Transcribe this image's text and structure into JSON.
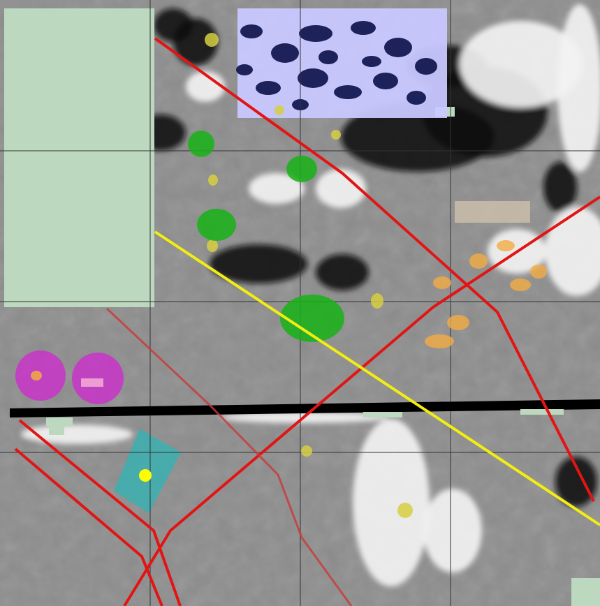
{
  "map": {
    "kind": "geophysical-survey-interpretation",
    "grid_columns": 4,
    "grid_rows": 4,
    "colors": {
      "grid_line": "#333333",
      "unsurveyed_fill": "#bcd9c0",
      "survey_dark": "#0b0b0b",
      "survey_light": "#f2f2f2",
      "linear_feature": "#e21414",
      "faint_linear_feature": "#c83a3a",
      "trackway": "#f2ee12",
      "pit_small": "#d6cf42",
      "pit_large": "#18b318",
      "pit_cluster": "#f2ab44",
      "ring_feature": "#cc2ecc",
      "disturbance_area": "#2fb4b4",
      "magnetic_area": "#c8c8ff",
      "boundary_strip": "#000000",
      "structure_block": "#c7bba9",
      "point_marker": "#ffff00"
    }
  }
}
